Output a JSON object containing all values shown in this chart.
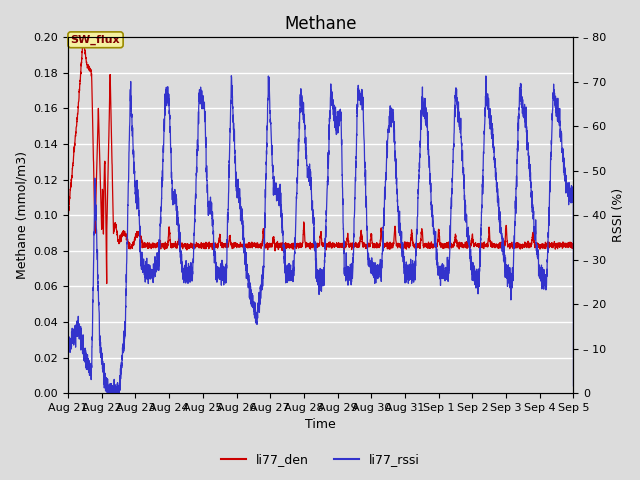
{
  "title": "Methane",
  "xlabel": "Time",
  "ylabel_left": "Methane (mmol/m3)",
  "ylabel_right": "RSSI (%)",
  "ylim_left": [
    0.0,
    0.2
  ],
  "ylim_right": [
    0,
    80
  ],
  "yticks_left": [
    0.0,
    0.02,
    0.04,
    0.06,
    0.08,
    0.1,
    0.12,
    0.14,
    0.16,
    0.18,
    0.2
  ],
  "yticks_right": [
    0,
    10,
    20,
    30,
    40,
    50,
    60,
    70,
    80
  ],
  "xtick_labels": [
    "Aug 21",
    "Aug 22",
    "Aug 23",
    "Aug 24",
    "Aug 25",
    "Aug 26",
    "Aug 27",
    "Aug 28",
    "Aug 29",
    "Aug 30",
    "Aug 31",
    "Sep 1",
    "Sep 2",
    "Sep 3",
    "Sep 4",
    "Sep 5"
  ],
  "annotation_text": "SW_flux",
  "line_red_label": "li77_den",
  "line_blue_label": "li77_rssi",
  "line_red_color": "#cc0000",
  "line_blue_color": "#3333cc",
  "bg_color": "#dcdcdc",
  "grid_color": "#ffffff",
  "title_fontsize": 12,
  "label_fontsize": 9,
  "tick_fontsize": 8,
  "legend_fontsize": 9
}
